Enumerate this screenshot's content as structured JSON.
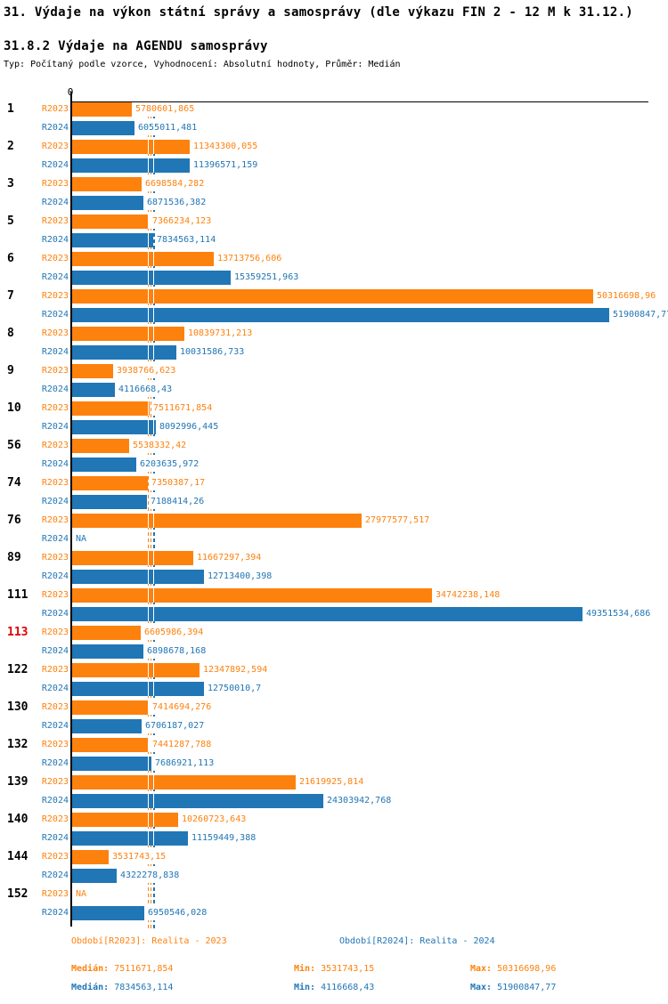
{
  "header": {
    "title": "31. Výdaje na výkon státní správy a samosprávy (dle výkazu FIN 2 - 12 M k 31.12.)",
    "subtitle": "31.8.2 Výdaje na AGENDU samosprávy",
    "meta": "Typ: Počítaný podle vzorce, Vyhodnocení: Absolutní hodnoty, Průměr: Medián"
  },
  "colors": {
    "r2023": "#fd810d",
    "r2024": "#2176b5",
    "highlight_category": "#dd0000",
    "axis": "#000000"
  },
  "chart_data": {
    "type": "bar",
    "orientation": "horizontal",
    "series_labels": [
      "R2023",
      "R2024"
    ],
    "axis_zero_label": "0",
    "xlim": [
      0,
      55780000
    ],
    "grid": false,
    "highlighted_categories": [
      "113"
    ],
    "na_text": "NA",
    "median_lines": {
      "r2023": "7511671,854",
      "r2024": "7834563,114"
    },
    "categories": [
      "1",
      "2",
      "3",
      "5",
      "6",
      "7",
      "8",
      "9",
      "10",
      "56",
      "74",
      "76",
      "89",
      "111",
      "113",
      "122",
      "130",
      "132",
      "139",
      "140",
      "144",
      "152"
    ],
    "rows": [
      {
        "category": "1",
        "r2023": "5780601,865",
        "r2024": "6055011,481"
      },
      {
        "category": "2",
        "r2023": "11343300,055",
        "r2024": "11396571,159"
      },
      {
        "category": "3",
        "r2023": "6698584,282",
        "r2024": "6871536,382"
      },
      {
        "category": "5",
        "r2023": "7366234,123",
        "r2024": "7834563,114"
      },
      {
        "category": "6",
        "r2023": "13713756,606",
        "r2024": "15359251,963"
      },
      {
        "category": "7",
        "r2023": "50316698,96",
        "r2024": "51900847,77"
      },
      {
        "category": "8",
        "r2023": "10839731,213",
        "r2024": "10031586,733"
      },
      {
        "category": "9",
        "r2023": "3938766,623",
        "r2024": "4116668,43"
      },
      {
        "category": "10",
        "r2023": "7511671,854",
        "r2024": "8092996,445"
      },
      {
        "category": "56",
        "r2023": "5538332,42",
        "r2024": "6203635,972"
      },
      {
        "category": "74",
        "r2023": "7350387,17",
        "r2024": "7188414,26"
      },
      {
        "category": "76",
        "r2023": "27977577,517",
        "r2024": "NA"
      },
      {
        "category": "89",
        "r2023": "11667297,394",
        "r2024": "12713400,398"
      },
      {
        "category": "111",
        "r2023": "34742238,148",
        "r2024": "49351534,686"
      },
      {
        "category": "113",
        "r2023": "6605986,394",
        "r2024": "6898678,168"
      },
      {
        "category": "122",
        "r2023": "12347892,594",
        "r2024": "12750010,7"
      },
      {
        "category": "130",
        "r2023": "7414694,276",
        "r2024": "6706187,027"
      },
      {
        "category": "132",
        "r2023": "7441287,788",
        "r2024": "7686921,113"
      },
      {
        "category": "139",
        "r2023": "21619925,814",
        "r2024": "24303942,768"
      },
      {
        "category": "140",
        "r2023": "10260723,643",
        "r2024": "11159449,388"
      },
      {
        "category": "144",
        "r2023": "3531743,15",
        "r2024": "4322278,838"
      },
      {
        "category": "152",
        "r2023": "NA",
        "r2024": "6950546,028"
      }
    ]
  },
  "footer": {
    "period_r2023": "Období[R2023]: Realita - 2023",
    "period_r2024": "Období[R2024]: Realita - 2024",
    "stats": [
      {
        "median_label": "Medián:",
        "median": "7511671,854",
        "min_label": "Min:",
        "min": "3531743,15",
        "max_label": "Max:",
        "max": "50316698,96"
      },
      {
        "median_label": "Medián:",
        "median": "7834563,114",
        "min_label": "Min:",
        "min": "4116668,43",
        "max_label": "Max:",
        "max": "51900847,77"
      }
    ]
  }
}
